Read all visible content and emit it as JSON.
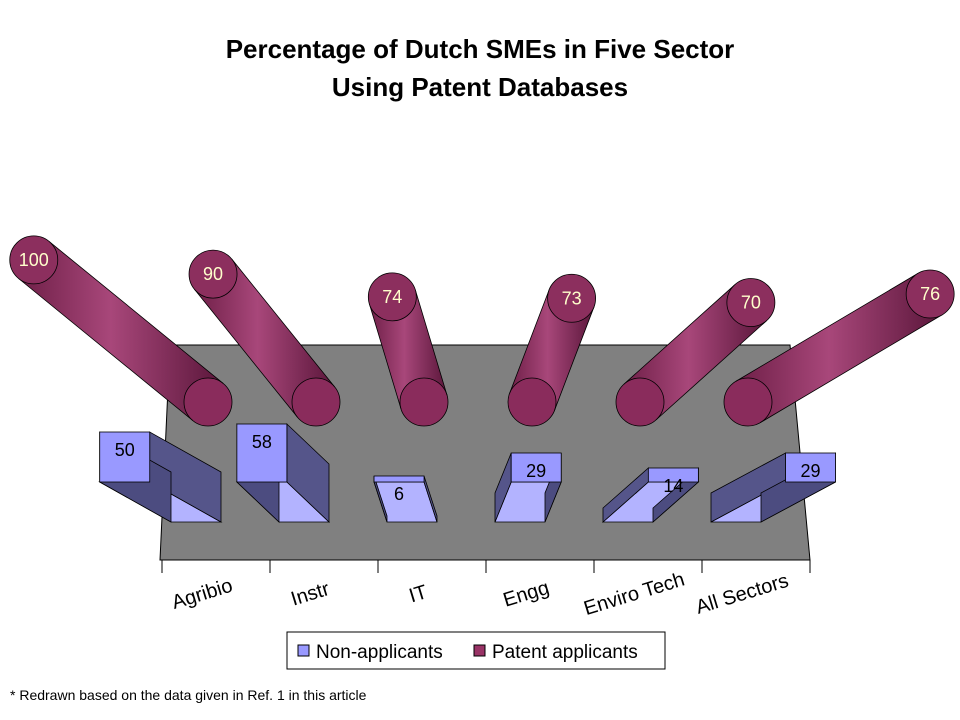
{
  "chart_data": {
    "type": "bar",
    "title_lines": [
      "Percentage of Dutch SMEs in Five Sector",
      "Using Patent Databases"
    ],
    "categories": [
      "Agribio",
      "Instr",
      "IT",
      "Engg",
      "Enviro Tech",
      "All Sectors"
    ],
    "series": [
      {
        "name": "Non-applicants",
        "values": [
          50,
          58,
          6,
          29,
          14,
          29
        ],
        "color": "#9999ff",
        "shape": "box"
      },
      {
        "name": "Patent applicants",
        "values": [
          100,
          90,
          74,
          73,
          70,
          76
        ],
        "color": "#993366",
        "shape": "cylinder"
      }
    ],
    "xlabel": "",
    "ylabel": "",
    "ylim": [
      0,
      100
    ],
    "grid": false,
    "legend": "bottom",
    "three_d": true,
    "wall_color": "#808080"
  },
  "footnote": "* Redrawn based on the data given in Ref. 1 in this article"
}
